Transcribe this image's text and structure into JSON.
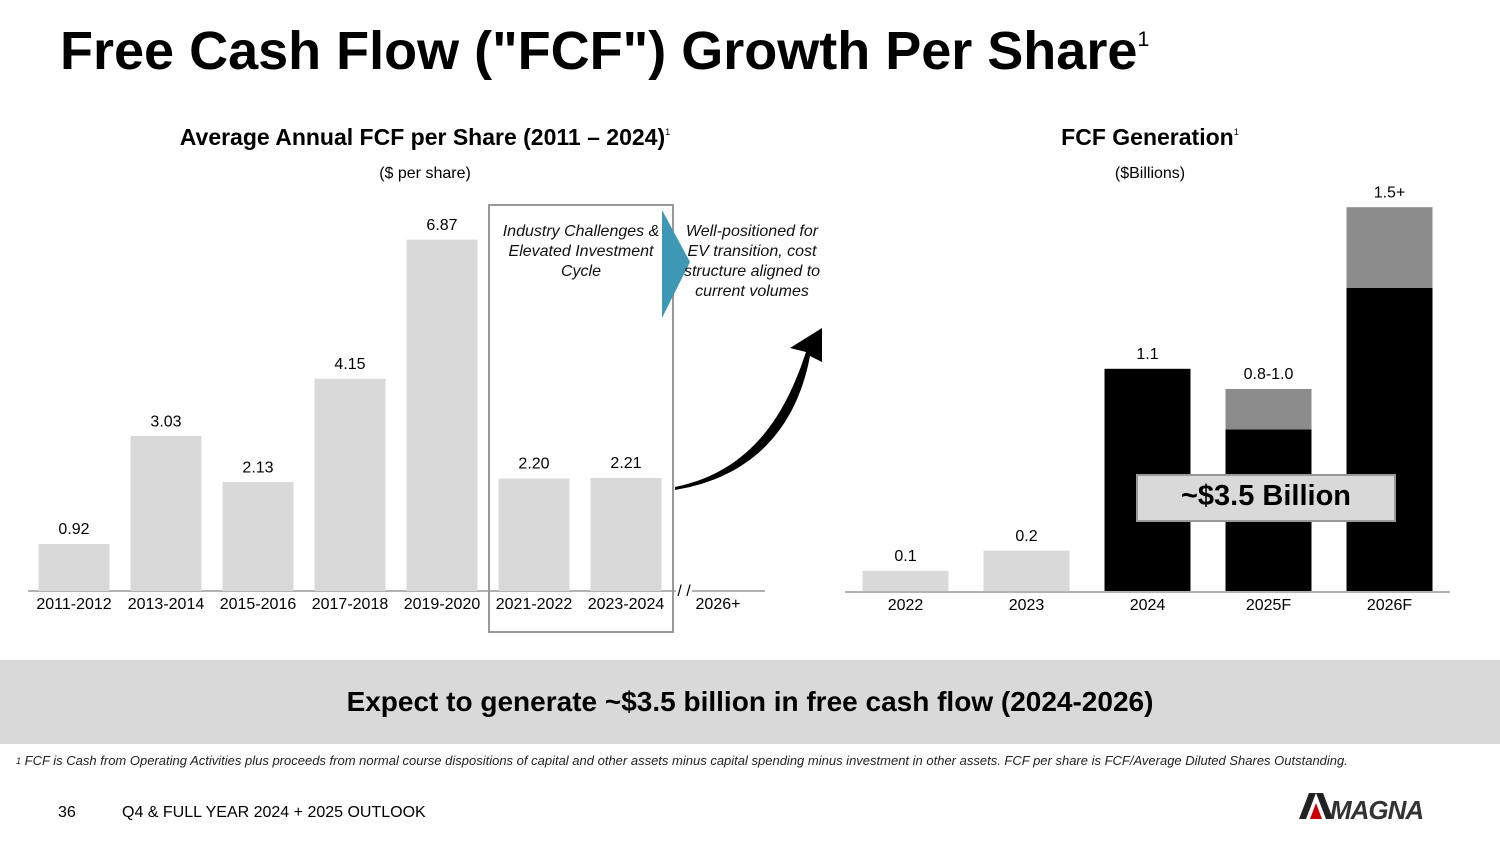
{
  "title": "Free Cash Flow (\"FCF\") Growth Per Share",
  "title_note": "1",
  "chart_data": [
    {
      "type": "bar",
      "title": "Average Annual FCF per Share (2011 – 2024)",
      "title_note": "1",
      "subtitle": "($ per share)",
      "categories": [
        "2011-2012",
        "2013-2014",
        "2015-2016",
        "2017-2018",
        "2019-2020",
        "2021-2022",
        "2023-2024",
        "2026+"
      ],
      "values": [
        0.92,
        3.03,
        2.13,
        4.15,
        6.87,
        2.2,
        2.21,
        null
      ],
      "value_labels": [
        "0.92",
        "3.03",
        "2.13",
        "4.15",
        "6.87",
        "2.20",
        "2.21",
        null
      ],
      "color": "#d9d9d9",
      "ylim": [
        0,
        7
      ],
      "annotations": [
        "Industry Challenges & Elevated Investment Cycle",
        "Well-positioned for EV transition, cost structure aligned to current volumes"
      ]
    },
    {
      "type": "stacked_bar",
      "title": "FCF Generation",
      "title_note": "1",
      "subtitle": "($Billions)",
      "categories": [
        "2022",
        "2023",
        "2024",
        "2025F",
        "2026F"
      ],
      "series": [
        {
          "colors": [
            "#d9d9d9",
            "#d9d9d9",
            "#000000",
            "#000000",
            "#000000"
          ],
          "values": [
            0.1,
            0.2,
            1.1,
            0.8,
            1.5
          ],
          "value_labels": [
            "0.1",
            "0.2",
            "1.1",
            "0.8-1.0",
            "1.5+"
          ]
        },
        {
          "color": "#8c8c8c",
          "values": [
            null,
            null,
            null,
            0.2,
            0.4
          ]
        }
      ],
      "ylim": [
        0,
        2
      ],
      "annotations": [
        "~$3.5 Billion"
      ]
    }
  ],
  "banner": "Expect to generate ~$3.5 billion in free cash flow (2024-2026)",
  "footnote": {
    "marker": "1",
    "text": "FCF is Cash from Operating Activities plus proceeds from normal course dispositions of capital and other assets minus capital spending minus investment in other assets. FCF per share is FCF/Average Diluted Shares Outstanding."
  },
  "footer": {
    "page": "36",
    "text": "Q4 & FULL YEAR 2024 + 2025 OUTLOOK"
  },
  "logo": "MAGNA"
}
